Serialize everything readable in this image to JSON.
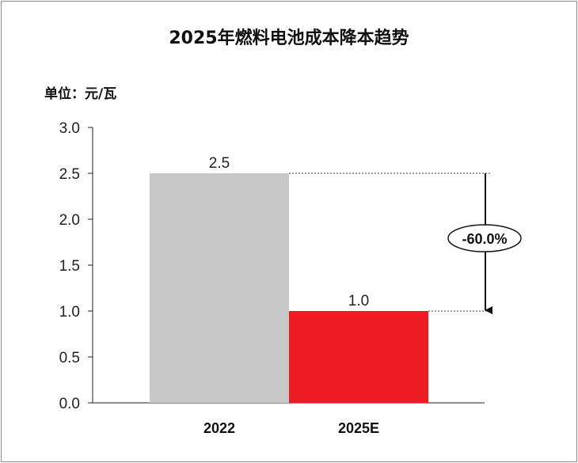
{
  "chart_data": {
    "type": "bar",
    "title": "2025年燃料电池成本降本趋势",
    "unit_label": "单位：元/瓦",
    "categories": [
      "2022",
      "2025E"
    ],
    "values": [
      2.5,
      1.0
    ],
    "data_labels": [
      "2.5",
      "1.0"
    ],
    "bar_colors": [
      "#c8c8c8",
      "#ed1c24"
    ],
    "ylim": [
      0,
      3.0
    ],
    "yticks": [
      0.0,
      0.5,
      1.0,
      1.5,
      2.0,
      2.5,
      3.0
    ],
    "ytick_labels": [
      "0.0",
      "0.5",
      "1.0",
      "1.5",
      "2.0",
      "2.5",
      "3.0"
    ],
    "grid": false,
    "legend": "none",
    "annotation": {
      "text": "-60.0%",
      "from_value": 2.5,
      "to_value": 1.0,
      "style": "down-arrow with dashed guide lines"
    }
  }
}
